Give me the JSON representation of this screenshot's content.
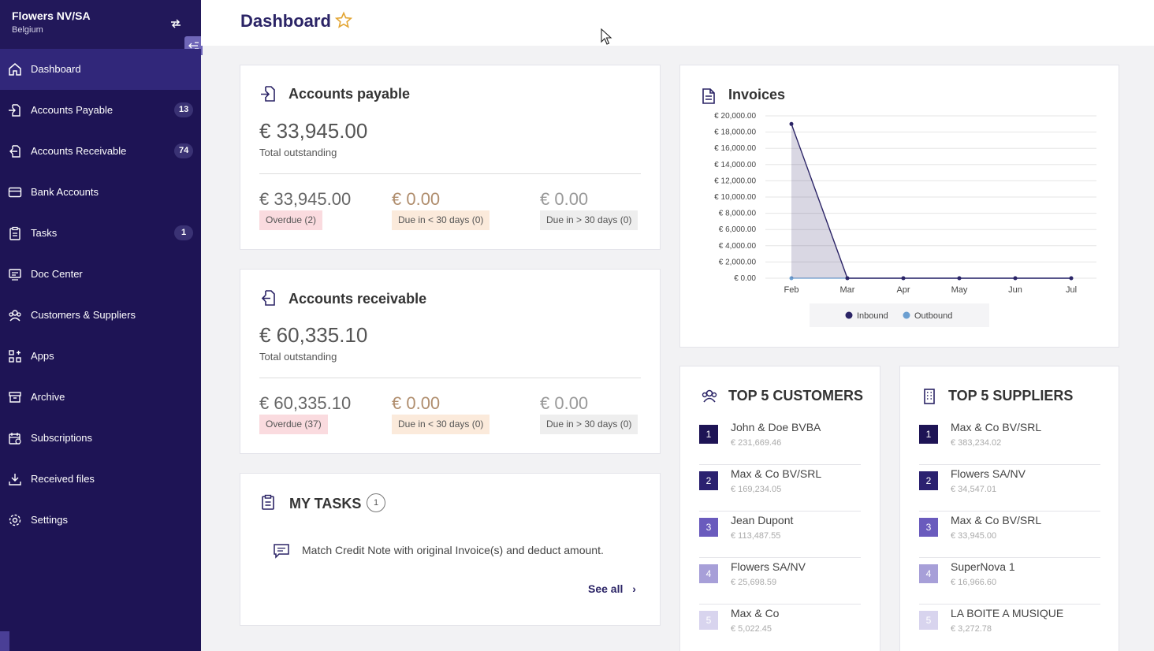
{
  "company": {
    "name": "Flowers NV/SA",
    "country": "Belgium"
  },
  "nav": [
    {
      "label": "Dashboard",
      "icon": "home-icon",
      "badge": "",
      "active": true
    },
    {
      "label": "Accounts Payable",
      "icon": "file-import-icon",
      "badge": "13"
    },
    {
      "label": "Accounts Receivable",
      "icon": "file-export-icon",
      "badge": "74"
    },
    {
      "label": "Bank Accounts",
      "icon": "card-icon",
      "badge": ""
    },
    {
      "label": "Tasks",
      "icon": "clipboard-icon",
      "badge": "1"
    },
    {
      "label": "Doc Center",
      "icon": "doc-center-icon",
      "badge": ""
    },
    {
      "label": "Customers & Suppliers",
      "icon": "users-icon",
      "badge": ""
    },
    {
      "label": "Apps",
      "icon": "apps-icon",
      "badge": ""
    },
    {
      "label": "Archive",
      "icon": "archive-icon",
      "badge": ""
    },
    {
      "label": "Subscriptions",
      "icon": "subscriptions-icon",
      "badge": ""
    },
    {
      "label": "Received files",
      "icon": "download-tray-icon",
      "badge": ""
    },
    {
      "label": "Settings",
      "icon": "gear-icon",
      "badge": ""
    }
  ],
  "header": {
    "title": "Dashboard"
  },
  "payable": {
    "title": "Accounts payable",
    "total": "€ 33,945.00",
    "total_label": "Total outstanding",
    "stats": [
      {
        "amount": "€ 33,945.00",
        "tag": "Overdue (2)"
      },
      {
        "amount": "€ 0.00",
        "tag": "Due in < 30 days (0)"
      },
      {
        "amount": "€ 0.00",
        "tag": "Due in > 30 days (0)"
      }
    ]
  },
  "receivable": {
    "title": "Accounts receivable",
    "total": "€ 60,335.10",
    "total_label": "Total outstanding",
    "stats": [
      {
        "amount": "€ 60,335.10",
        "tag": "Overdue (37)"
      },
      {
        "amount": "€ 0.00",
        "tag": "Due in < 30 days (0)"
      },
      {
        "amount": "€ 0.00",
        "tag": "Due in > 30 days (0)"
      }
    ]
  },
  "tasks": {
    "title": "MY TASKS",
    "count": "1",
    "items": [
      "Match Credit Note with original Invoice(s) and deduct amount."
    ],
    "see_all": "See all"
  },
  "invoices": {
    "title": "Invoices"
  },
  "chart_data": {
    "type": "area",
    "title": "Invoices",
    "categories": [
      "Feb",
      "Mar",
      "Apr",
      "May",
      "Jun",
      "Jul"
    ],
    "y_ticks": [
      "€ 0.00",
      "€ 2,000.00",
      "€ 4,000.00",
      "€ 6,000.00",
      "€ 8,000.00",
      "€ 10,000.00",
      "€ 12,000.00",
      "€ 14,000.00",
      "€ 16,000.00",
      "€ 18,000.00",
      "€ 20,000.00"
    ],
    "ylim": [
      0,
      20000
    ],
    "series": [
      {
        "name": "Inbound",
        "color": "#2b2466",
        "values": [
          19000,
          0,
          0,
          0,
          0,
          0
        ]
      },
      {
        "name": "Outbound",
        "color": "#6c9fd1",
        "values": [
          0,
          0,
          0,
          0,
          0,
          0
        ]
      }
    ],
    "legend": "bottom",
    "grid": true
  },
  "top_customers": {
    "title": "TOP 5 CUSTOMERS",
    "items": [
      {
        "rank": "1",
        "name": "John & Doe BVBA",
        "value": "€ 231,669.46"
      },
      {
        "rank": "2",
        "name": "Max & Co BV/SRL",
        "value": "€ 169,234.05"
      },
      {
        "rank": "3",
        "name": "Jean Dupont",
        "value": "€ 113,487.55"
      },
      {
        "rank": "4",
        "name": "Flowers SA/NV",
        "value": "€ 25,698.59"
      },
      {
        "rank": "5",
        "name": "Max & Co",
        "value": "€ 5,022.45"
      }
    ]
  },
  "top_suppliers": {
    "title": "TOP 5 SUPPLIERS",
    "items": [
      {
        "rank": "1",
        "name": "Max & Co BV/SRL",
        "value": "€ 383,234.02"
      },
      {
        "rank": "2",
        "name": "Flowers SA/NV",
        "value": "€ 34,547.01"
      },
      {
        "rank": "3",
        "name": "Max & Co BV/SRL",
        "value": "€ 33,945.00"
      },
      {
        "rank": "4",
        "name": "SuperNova 1",
        "value": "€ 16,966.60"
      },
      {
        "rank": "5",
        "name": "LA BOITE A MUSIQUE",
        "value": "€ 3,272.78"
      }
    ]
  },
  "rank_colors": [
    "#1e1455",
    "#2b2170",
    "#6a5bbd",
    "#a79fd8",
    "#d8d4ee"
  ]
}
